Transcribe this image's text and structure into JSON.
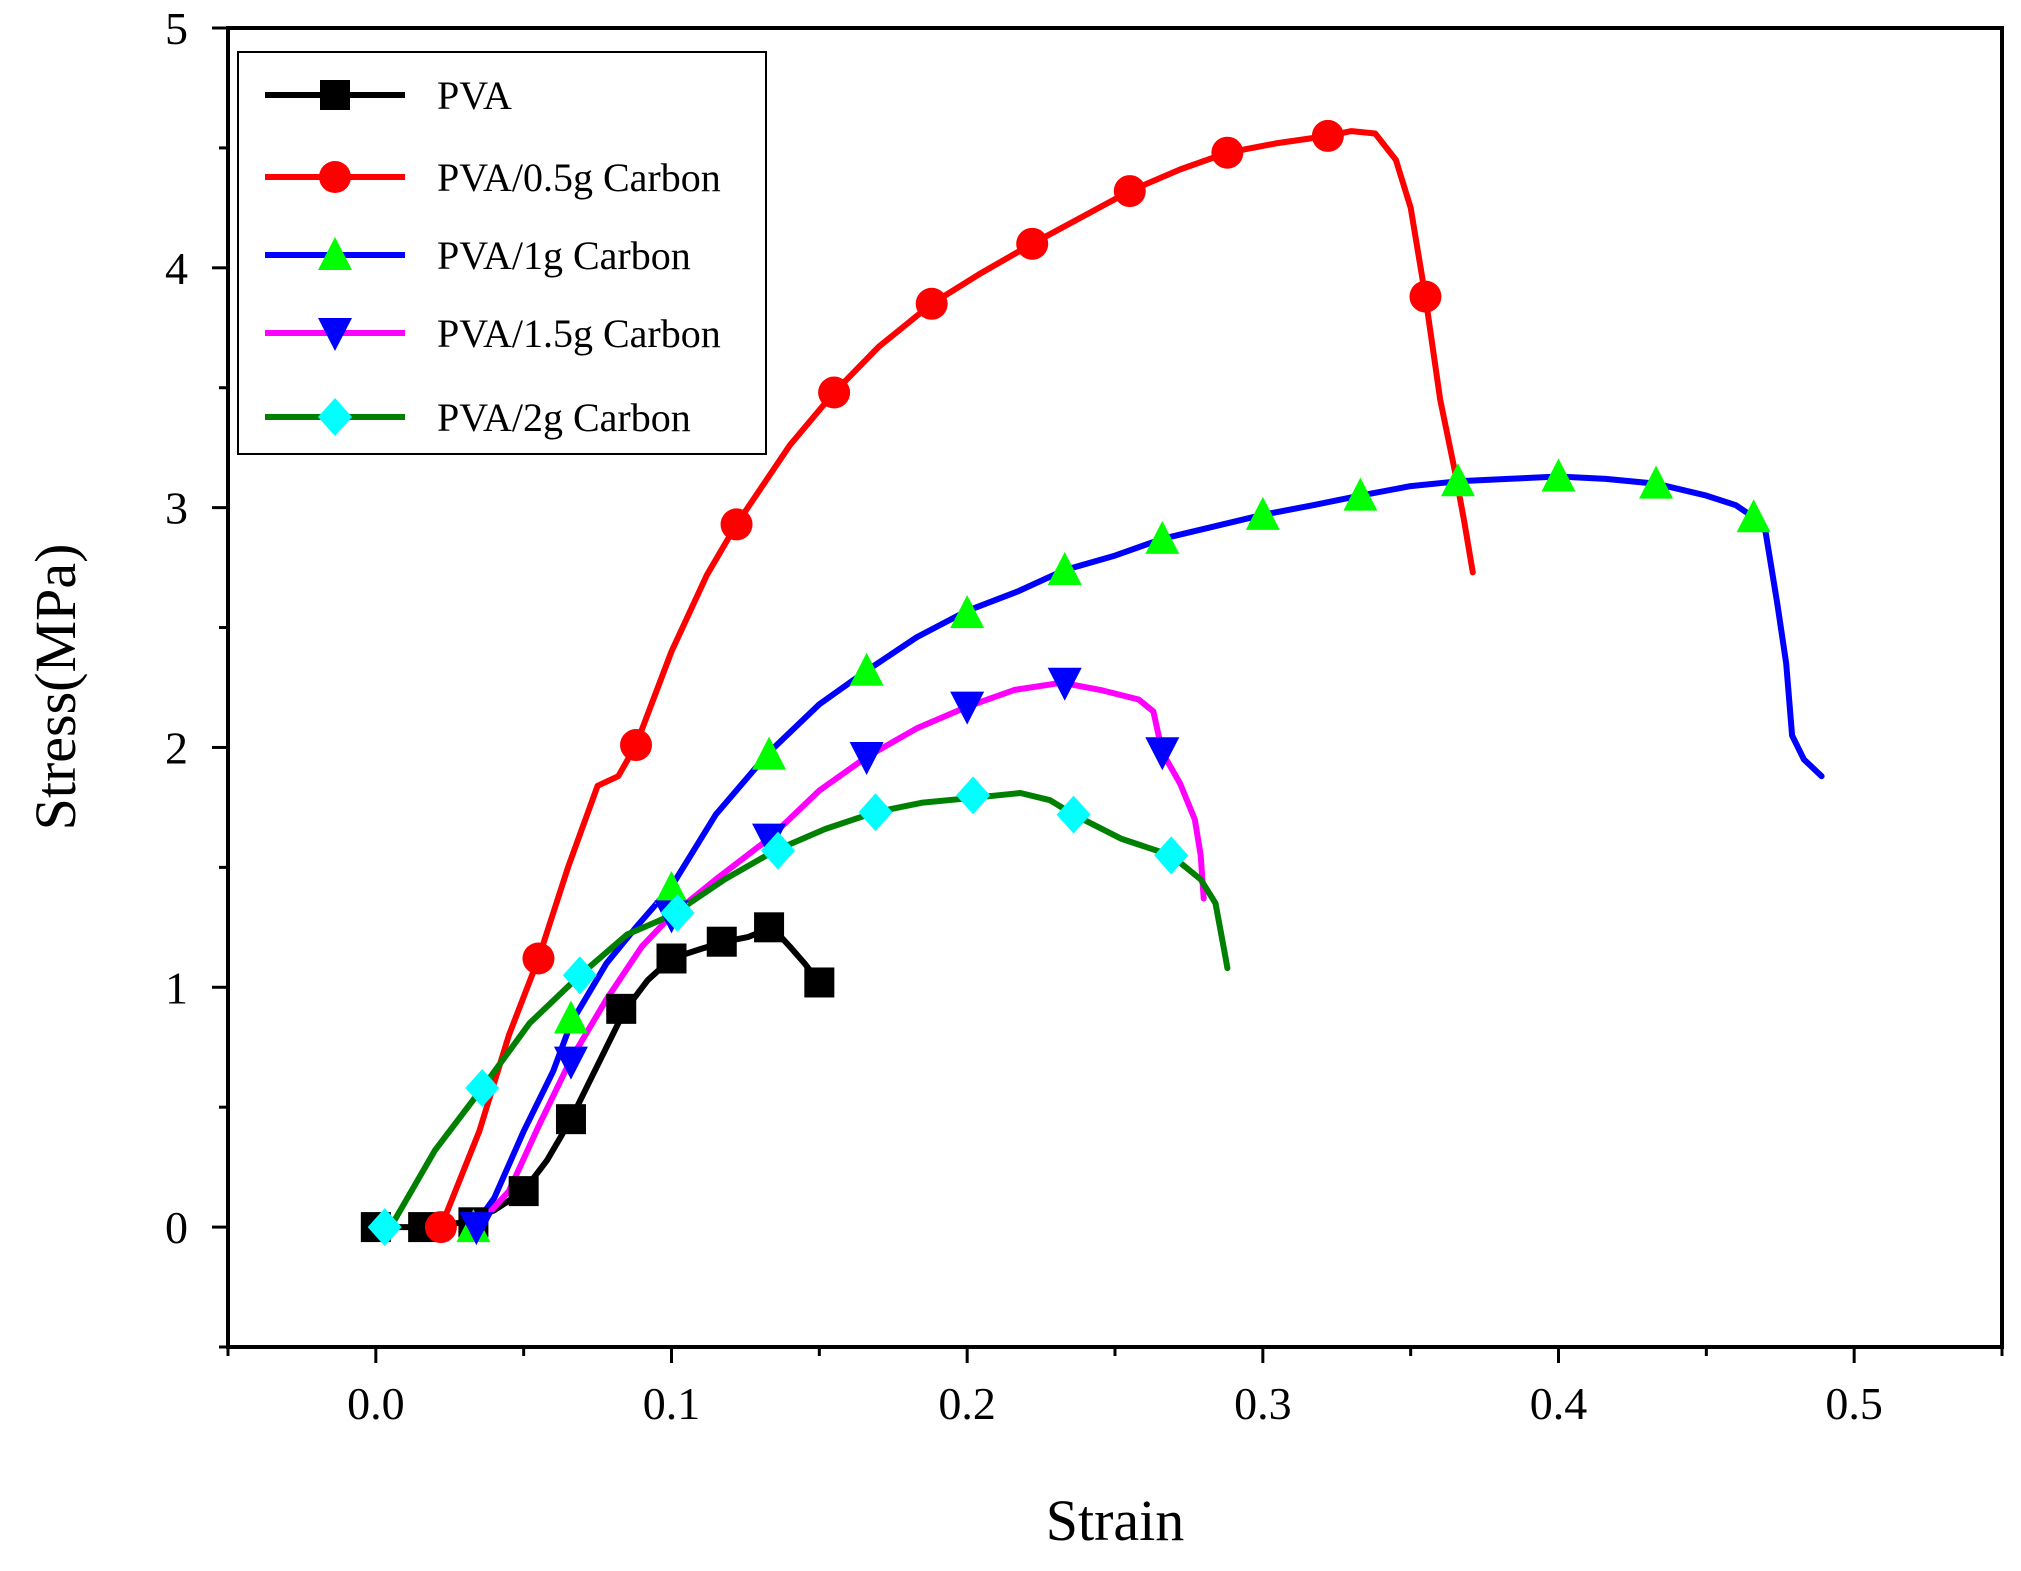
{
  "chart_data": {
    "type": "line",
    "title": "",
    "xlabel": "Strain",
    "ylabel": "Stress(MPa)",
    "xlim": [
      -0.05,
      0.55
    ],
    "ylim": [
      -0.5,
      5
    ],
    "xticks": [
      0.0,
      0.1,
      0.2,
      0.3,
      0.4,
      0.5
    ],
    "xtick_labels": [
      "0.0",
      "0.1",
      "0.2",
      "0.3",
      "0.4",
      "0.5"
    ],
    "yticks": [
      0,
      1,
      2,
      3,
      4,
      5
    ],
    "ytick_labels": [
      "0",
      "1",
      "2",
      "3",
      "4",
      "5"
    ],
    "grid": false,
    "legend_position": "top-left",
    "series": [
      {
        "name": "PVA",
        "color": "#000000",
        "marker": "square",
        "marker_color": "#000000",
        "points": [
          [
            0.0,
            0.0
          ],
          [
            0.015,
            0.0
          ],
          [
            0.03,
            0.02
          ],
          [
            0.04,
            0.07
          ],
          [
            0.05,
            0.15
          ],
          [
            0.058,
            0.28
          ],
          [
            0.066,
            0.45
          ],
          [
            0.072,
            0.6
          ],
          [
            0.078,
            0.75
          ],
          [
            0.084,
            0.9
          ],
          [
            0.092,
            1.03
          ],
          [
            0.1,
            1.12
          ],
          [
            0.11,
            1.16
          ],
          [
            0.118,
            1.19
          ],
          [
            0.126,
            1.21
          ],
          [
            0.134,
            1.25
          ],
          [
            0.14,
            1.17
          ],
          [
            0.145,
            1.1
          ],
          [
            0.15,
            1.02
          ]
        ],
        "markers": [
          [
            0.0,
            0.0
          ],
          [
            0.016,
            0.0
          ],
          [
            0.033,
            0.02
          ],
          [
            0.05,
            0.15
          ],
          [
            0.066,
            0.45
          ],
          [
            0.083,
            0.91
          ],
          [
            0.1,
            1.12
          ],
          [
            0.117,
            1.19
          ],
          [
            0.133,
            1.25
          ],
          [
            0.15,
            1.02
          ]
        ]
      },
      {
        "name": "PVA/0.5g Carbon",
        "color": "#ff0000",
        "marker": "circle",
        "marker_color": "#ff0000",
        "points": [
          [
            0.022,
            0.0
          ],
          [
            0.035,
            0.4
          ],
          [
            0.045,
            0.8
          ],
          [
            0.055,
            1.12
          ],
          [
            0.065,
            1.5
          ],
          [
            0.075,
            1.84
          ],
          [
            0.082,
            1.88
          ],
          [
            0.088,
            2.01
          ],
          [
            0.1,
            2.4
          ],
          [
            0.112,
            2.72
          ],
          [
            0.122,
            2.93
          ],
          [
            0.14,
            3.26
          ],
          [
            0.155,
            3.48
          ],
          [
            0.17,
            3.67
          ],
          [
            0.188,
            3.85
          ],
          [
            0.205,
            3.98
          ],
          [
            0.222,
            4.1
          ],
          [
            0.24,
            4.22
          ],
          [
            0.255,
            4.32
          ],
          [
            0.272,
            4.41
          ],
          [
            0.288,
            4.48
          ],
          [
            0.305,
            4.52
          ],
          [
            0.322,
            4.55
          ],
          [
            0.33,
            4.57
          ],
          [
            0.338,
            4.56
          ],
          [
            0.345,
            4.45
          ],
          [
            0.35,
            4.25
          ],
          [
            0.355,
            3.88
          ],
          [
            0.36,
            3.45
          ],
          [
            0.365,
            3.15
          ],
          [
            0.368,
            2.95
          ],
          [
            0.371,
            2.73
          ]
        ],
        "markers": [
          [
            0.022,
            0.0
          ],
          [
            0.055,
            1.12
          ],
          [
            0.088,
            2.01
          ],
          [
            0.122,
            2.93
          ],
          [
            0.155,
            3.48
          ],
          [
            0.188,
            3.85
          ],
          [
            0.222,
            4.1
          ],
          [
            0.255,
            4.32
          ],
          [
            0.288,
            4.48
          ],
          [
            0.322,
            4.55
          ],
          [
            0.355,
            3.88
          ]
        ]
      },
      {
        "name": "PVA/1g Carbon",
        "color": "#0000ff",
        "marker": "triangle-up",
        "marker_color": "#00ff00",
        "points": [
          [
            0.033,
            0.0
          ],
          [
            0.04,
            0.12
          ],
          [
            0.05,
            0.4
          ],
          [
            0.06,
            0.65
          ],
          [
            0.066,
            0.85
          ],
          [
            0.078,
            1.1
          ],
          [
            0.088,
            1.25
          ],
          [
            0.1,
            1.42
          ],
          [
            0.115,
            1.72
          ],
          [
            0.133,
            1.98
          ],
          [
            0.15,
            2.18
          ],
          [
            0.166,
            2.32
          ],
          [
            0.183,
            2.46
          ],
          [
            0.2,
            2.57
          ],
          [
            0.217,
            2.65
          ],
          [
            0.233,
            2.74
          ],
          [
            0.25,
            2.8
          ],
          [
            0.266,
            2.87
          ],
          [
            0.283,
            2.92
          ],
          [
            0.3,
            2.97
          ],
          [
            0.317,
            3.01
          ],
          [
            0.333,
            3.05
          ],
          [
            0.35,
            3.09
          ],
          [
            0.366,
            3.11
          ],
          [
            0.383,
            3.12
          ],
          [
            0.4,
            3.13
          ],
          [
            0.416,
            3.12
          ],
          [
            0.433,
            3.1
          ],
          [
            0.45,
            3.05
          ],
          [
            0.46,
            3.01
          ],
          [
            0.466,
            2.96
          ],
          [
            0.47,
            2.9
          ],
          [
            0.474,
            2.6
          ],
          [
            0.477,
            2.35
          ],
          [
            0.479,
            2.05
          ],
          [
            0.483,
            1.95
          ],
          [
            0.489,
            1.88
          ]
        ],
        "markers": [
          [
            0.033,
            0.0
          ],
          [
            0.066,
            0.87
          ],
          [
            0.1,
            1.41
          ],
          [
            0.133,
            1.97
          ],
          [
            0.166,
            2.32
          ],
          [
            0.2,
            2.56
          ],
          [
            0.233,
            2.74
          ],
          [
            0.266,
            2.87
          ],
          [
            0.3,
            2.97
          ],
          [
            0.333,
            3.05
          ],
          [
            0.366,
            3.11
          ],
          [
            0.4,
            3.13
          ],
          [
            0.433,
            3.1
          ],
          [
            0.466,
            2.96
          ]
        ]
      },
      {
        "name": "PVA/1.5g Carbon",
        "color": "#ff00ff",
        "marker": "triangle-down",
        "marker_color": "#0000ff",
        "points": [
          [
            0.034,
            0.0
          ],
          [
            0.045,
            0.15
          ],
          [
            0.055,
            0.42
          ],
          [
            0.066,
            0.7
          ],
          [
            0.078,
            0.95
          ],
          [
            0.09,
            1.17
          ],
          [
            0.1,
            1.3
          ],
          [
            0.115,
            1.45
          ],
          [
            0.133,
            1.62
          ],
          [
            0.15,
            1.82
          ],
          [
            0.166,
            1.96
          ],
          [
            0.183,
            2.08
          ],
          [
            0.2,
            2.17
          ],
          [
            0.216,
            2.24
          ],
          [
            0.232,
            2.27
          ],
          [
            0.245,
            2.24
          ],
          [
            0.258,
            2.2
          ],
          [
            0.263,
            2.15
          ],
          [
            0.266,
            1.98
          ],
          [
            0.272,
            1.85
          ],
          [
            0.277,
            1.7
          ],
          [
            0.279,
            1.55
          ],
          [
            0.28,
            1.37
          ]
        ],
        "markers": [
          [
            0.034,
            0.0
          ],
          [
            0.066,
            0.69
          ],
          [
            0.1,
            1.3
          ],
          [
            0.133,
            1.62
          ],
          [
            0.166,
            1.96
          ],
          [
            0.2,
            2.17
          ],
          [
            0.233,
            2.27
          ],
          [
            0.266,
            1.98
          ]
        ]
      },
      {
        "name": "PVA/2g Carbon",
        "color": "#008000",
        "marker": "diamond",
        "marker_color": "#00ffff",
        "points": [
          [
            0.005,
            0.0
          ],
          [
            0.02,
            0.32
          ],
          [
            0.036,
            0.58
          ],
          [
            0.052,
            0.85
          ],
          [
            0.069,
            1.05
          ],
          [
            0.085,
            1.22
          ],
          [
            0.1,
            1.3
          ],
          [
            0.118,
            1.45
          ],
          [
            0.135,
            1.57
          ],
          [
            0.152,
            1.66
          ],
          [
            0.169,
            1.73
          ],
          [
            0.185,
            1.77
          ],
          [
            0.202,
            1.79
          ],
          [
            0.218,
            1.81
          ],
          [
            0.228,
            1.78
          ],
          [
            0.236,
            1.72
          ],
          [
            0.252,
            1.62
          ],
          [
            0.269,
            1.55
          ],
          [
            0.279,
            1.45
          ],
          [
            0.284,
            1.35
          ],
          [
            0.287,
            1.15
          ],
          [
            0.288,
            1.08
          ]
        ],
        "markers": [
          [
            0.003,
            0.0
          ],
          [
            0.036,
            0.58
          ],
          [
            0.069,
            1.05
          ],
          [
            0.102,
            1.31
          ],
          [
            0.136,
            1.57
          ],
          [
            0.169,
            1.73
          ],
          [
            0.202,
            1.8
          ],
          [
            0.236,
            1.72
          ],
          [
            0.269,
            1.55
          ]
        ]
      }
    ]
  }
}
